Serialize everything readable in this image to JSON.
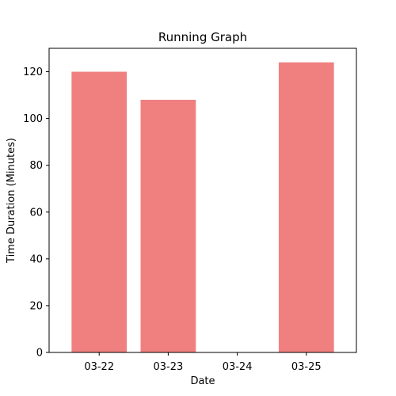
{
  "chart_data": {
    "type": "bar",
    "title": "Running Graph",
    "xlabel": "Date",
    "ylabel": "Time Duration (Minutes)",
    "categories": [
      "03-22",
      "03-23",
      "03-24",
      "03-25"
    ],
    "values": [
      120,
      108,
      0,
      124
    ],
    "ylim": [
      0,
      130
    ],
    "yticks": [
      0,
      20,
      40,
      60,
      80,
      100,
      120
    ],
    "grid": false,
    "bar_color": "#f08080"
  }
}
